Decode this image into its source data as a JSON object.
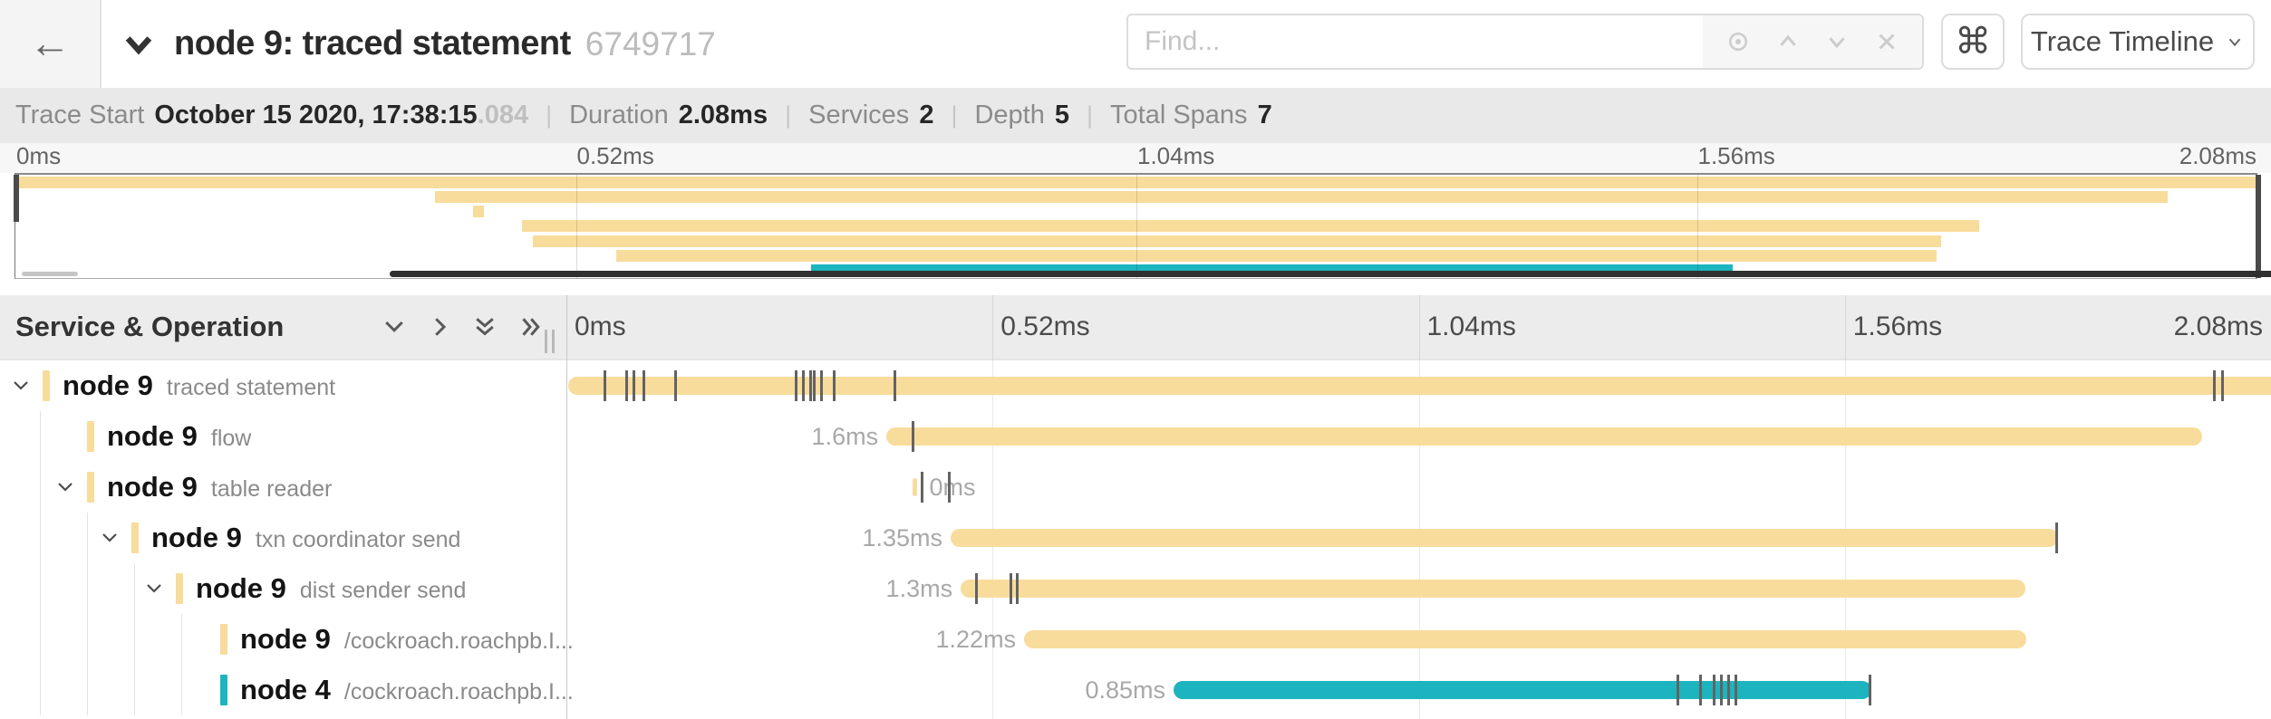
{
  "header": {
    "title": "node 9: traced statement",
    "trace_id": "6749717",
    "back_icon": "←",
    "search": {
      "placeholder": "Find..."
    },
    "shortcut_icon": "⌘",
    "view_selector_label": "Trace Timeline"
  },
  "trace_info": {
    "items": [
      {
        "label": "Trace Start",
        "value": "October 15 2020, 17:38:15",
        "suffix": ".084"
      },
      {
        "label": "Duration",
        "value": "2.08ms",
        "suffix": ""
      },
      {
        "label": "Services",
        "value": "2",
        "suffix": ""
      },
      {
        "label": "Depth",
        "value": "5",
        "suffix": ""
      },
      {
        "label": "Total Spans",
        "value": "7",
        "suffix": ""
      }
    ]
  },
  "colors": {
    "tan": "#F8DC9B",
    "teal": "#1CB5BF"
  },
  "minimap": {
    "tick_labels": [
      "0ms",
      "0.52ms",
      "1.04ms",
      "1.56ms",
      "2.08ms"
    ],
    "bars": [
      {
        "color": "tan",
        "start": 0,
        "end": 100
      },
      {
        "color": "tan",
        "start": 18.7,
        "end": 96.0
      },
      {
        "color": "tan",
        "start": 20.4,
        "end": 20.9
      },
      {
        "color": "tan",
        "start": 22.6,
        "end": 87.6
      },
      {
        "color": "tan",
        "start": 23.1,
        "end": 85.9
      },
      {
        "color": "tan",
        "start": 26.8,
        "end": 85.7
      },
      {
        "color": "teal",
        "start": 35.5,
        "end": 76.6
      }
    ]
  },
  "timeline": {
    "column_title": "Service & Operation",
    "tick_labels": [
      "0ms",
      "0.52ms",
      "1.04ms",
      "1.56ms",
      "2.08ms"
    ],
    "spans": [
      {
        "service": "node 9",
        "operation": "traced statement",
        "color": "tan",
        "depth": 0,
        "has_children": true,
        "duration_label": "",
        "label_side": "left",
        "bar": {
          "start": 0.1,
          "end": 100
        },
        "log_ticks": [
          2.18,
          3.46,
          3.88,
          4.47,
          6.33,
          13.4,
          13.82,
          14.25,
          14.46,
          14.89,
          15.63,
          19.19,
          96.6,
          97.08
        ]
      },
      {
        "service": "node 9",
        "operation": "flow",
        "color": "tan",
        "depth": 1,
        "has_children": false,
        "duration_label": "1.6ms",
        "label_side": "left",
        "bar": {
          "start": 18.77,
          "end": 95.96
        },
        "log_ticks": [
          20.26
        ]
      },
      {
        "service": "node 9",
        "operation": "table reader",
        "color": "tan",
        "depth": 1,
        "has_children": true,
        "duration_label": "0ms",
        "label_side": "right",
        "bar": {
          "start": 20.31,
          "end": 20.55
        },
        "log_ticks": [
          20.79,
          22.38
        ]
      },
      {
        "service": "node 9",
        "operation": "txn coordinator send",
        "color": "tan",
        "depth": 2,
        "has_children": true,
        "duration_label": "1.35ms",
        "label_side": "left",
        "bar": {
          "start": 22.54,
          "end": 87.51
        },
        "log_ticks": [
          87.35
        ]
      },
      {
        "service": "node 9",
        "operation": "dist sender send",
        "color": "tan",
        "depth": 3,
        "has_children": true,
        "duration_label": "1.3ms",
        "label_side": "left",
        "bar": {
          "start": 23.13,
          "end": 85.6
        },
        "log_ticks": [
          23.98,
          26.0,
          26.37
        ]
      },
      {
        "service": "node 9",
        "operation": "/cockroach.roachpb.I...",
        "color": "tan",
        "depth": 4,
        "has_children": false,
        "duration_label": "1.22ms",
        "label_side": "left",
        "bar": {
          "start": 26.85,
          "end": 85.65
        },
        "log_ticks": []
      },
      {
        "service": "node 4",
        "operation": "/cockroach.roachpb.I...",
        "color": "teal",
        "depth": 4,
        "has_children": false,
        "duration_label": "0.85ms",
        "label_side": "left",
        "bar": {
          "start": 35.62,
          "end": 76.55
        },
        "log_ticks": [
          65.12,
          66.45,
          67.25,
          67.68,
          68.1,
          68.53,
          76.4
        ]
      }
    ]
  }
}
